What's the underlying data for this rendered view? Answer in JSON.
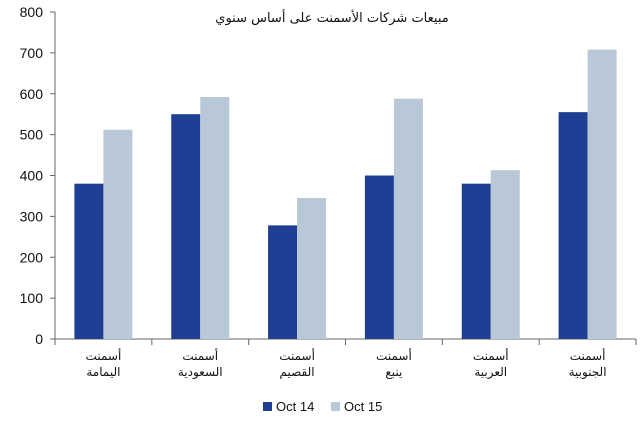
{
  "chart_data": {
    "type": "bar",
    "title": "مبيعات شركات الأسمنت على أساس سنوي",
    "xlabel": "",
    "ylabel": "",
    "ylim": [
      0,
      800
    ],
    "yticks": [
      "0",
      "100",
      "200",
      "300",
      "400",
      "500",
      "600",
      "700",
      "800"
    ],
    "categories": [
      [
        "أسمنت",
        "اليمامة"
      ],
      [
        "أسمنت",
        "السعودية"
      ],
      [
        "أسمنت",
        "القصيم"
      ],
      [
        "أسمنت",
        "ينبع"
      ],
      [
        "أسمنت",
        "العربية"
      ],
      [
        "أسمنت",
        "الجنوبية"
      ]
    ],
    "series": [
      {
        "name": "Oct 14",
        "color": "#1f3f94",
        "values": [
          380,
          550,
          278,
          400,
          380,
          555
        ]
      },
      {
        "name": "Oct 15",
        "color": "#b9c8d6",
        "values": [
          512,
          592,
          345,
          588,
          413,
          708
        ]
      }
    ],
    "grid": false,
    "legend": "bottom-center"
  }
}
